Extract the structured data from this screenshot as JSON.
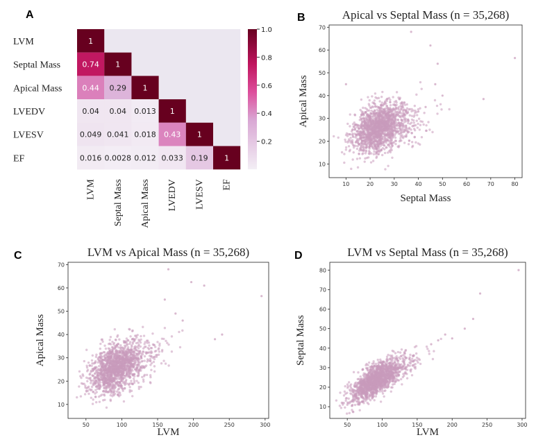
{
  "panels": [
    "A",
    "B",
    "C",
    "D"
  ],
  "chart_data": [
    {
      "type": "heatmap",
      "panel": "A",
      "labels": [
        "LVM",
        "Septal Mass",
        "Apical Mass",
        "LVEDV",
        "LVESV",
        "EF"
      ],
      "cells": [
        [
          1
        ],
        [
          0.74,
          1
        ],
        [
          0.44,
          0.29,
          1
        ],
        [
          0.04,
          0.04,
          0.013,
          1
        ],
        [
          0.049,
          0.041,
          0.018,
          0.43,
          1
        ],
        [
          0.016,
          0.0028,
          0.012,
          0.033,
          0.19,
          1
        ]
      ],
      "cell_text": [
        [
          "1"
        ],
        [
          "0.74",
          "1"
        ],
        [
          "0.44",
          "0.29",
          "1"
        ],
        [
          "0.04",
          "0.04",
          "0.013",
          "1"
        ],
        [
          "0.049",
          "0.041",
          "0.018",
          "0.43",
          "1"
        ],
        [
          "0.016",
          "0.0028",
          "0.012",
          "0.033",
          "0.19",
          "1"
        ]
      ],
      "colorbar": {
        "range": [
          0,
          1.0
        ],
        "ticks": [
          "0.2",
          "0.4",
          "0.6",
          "0.8",
          "1.0"
        ],
        "low_color": "#f3eef5",
        "mid_color": "#d07fc8",
        "high_color": "#67001f"
      }
    },
    {
      "type": "scatter",
      "panel": "B",
      "title": "Apical vs Septal Mass (n = 35,268)",
      "xlabel": "Septal Mass",
      "ylabel": "Apical Mass",
      "xlim": [
        3,
        83
      ],
      "ylim": [
        4,
        71
      ],
      "xticks": [
        10,
        20,
        30,
        40,
        50,
        60,
        70,
        80
      ],
      "yticks": [
        10,
        20,
        30,
        40,
        50,
        60,
        70
      ],
      "cloud": {
        "mean": [
          24,
          26
        ],
        "spread": [
          5.5,
          5.5
        ],
        "correlation": 0.29,
        "n_drawn": 1600
      },
      "outliers": [
        [
          80,
          56.5
        ],
        [
          45,
          62
        ],
        [
          37,
          68
        ],
        [
          67,
          38.5
        ],
        [
          48,
          54
        ],
        [
          43,
          35
        ],
        [
          10,
          45
        ],
        [
          47,
          45
        ],
        [
          40,
          33
        ],
        [
          50,
          40
        ]
      ],
      "color": "#c99bbb"
    },
    {
      "type": "scatter",
      "panel": "C",
      "title": "LVM vs Apical Mass (n = 35,268)",
      "xlabel": "LVM",
      "ylabel": "Apical Mass",
      "xlim": [
        25,
        305
      ],
      "ylim": [
        4,
        71
      ],
      "xticks": [
        50,
        100,
        150,
        200,
        250,
        300
      ],
      "yticks": [
        10,
        20,
        30,
        40,
        50,
        60,
        70
      ],
      "cloud": {
        "mean": [
          92,
          26
        ],
        "spread": [
          18,
          5.5
        ],
        "correlation": 0.44,
        "n_drawn": 1600
      },
      "outliers": [
        [
          295,
          56.5
        ],
        [
          197,
          62.5
        ],
        [
          165,
          68
        ],
        [
          215,
          61
        ],
        [
          160,
          55
        ],
        [
          240,
          40
        ],
        [
          230,
          38
        ],
        [
          175,
          49
        ],
        [
          185,
          46
        ]
      ],
      "color": "#c99bbb"
    },
    {
      "type": "scatter",
      "panel": "D",
      "title": "LVM vs Septal Mass (n = 35,268)",
      "xlabel": "LVM",
      "ylabel": "Septal Mass",
      "xlim": [
        25,
        305
      ],
      "ylim": [
        4,
        84
      ],
      "xticks": [
        50,
        100,
        150,
        200,
        250,
        300
      ],
      "yticks": [
        10,
        20,
        30,
        40,
        50,
        60,
        70,
        80
      ],
      "cloud": {
        "mean": [
          92,
          24
        ],
        "spread": [
          18,
          5.5
        ],
        "correlation": 0.74,
        "n_drawn": 1600
      },
      "outliers": [
        [
          295,
          80
        ],
        [
          240,
          68
        ],
        [
          218,
          50
        ],
        [
          200,
          45
        ],
        [
          180,
          44
        ],
        [
          170,
          42
        ],
        [
          230,
          55
        ],
        [
          190,
          47
        ]
      ],
      "color": "#c99bbb"
    }
  ]
}
